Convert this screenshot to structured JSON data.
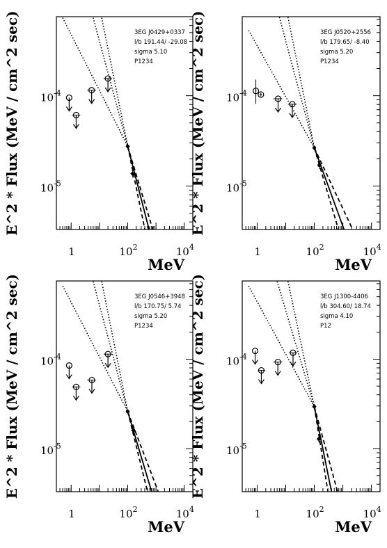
{
  "chart_data": [
    {
      "type": "scatter",
      "source": "3EG J0429+0337",
      "lb": "l/b 191.44/ -29.08",
      "sigma": "sigma  5.10",
      "period": "P1234",
      "xlabel": "MeV",
      "ylabel": "E^2 * Flux (MeV / cm^2 sec)",
      "xscale": "log",
      "yscale": "log",
      "xlim": [
        0.3,
        20000
      ],
      "ylim": [
        3.3e-06,
        0.00075
      ],
      "x_ticks": [
        {
          "base": "1",
          "exp": ""
        },
        {
          "base": "10",
          "exp": "2"
        },
        {
          "base": "10",
          "exp": "4"
        }
      ],
      "y_ticks": [
        {
          "base": "10",
          "exp": "-4"
        },
        {
          "base": "10",
          "exp": "-5"
        }
      ],
      "upper_limits": [
        {
          "x": 0.85,
          "y": 9.5e-05,
          "xerr": [
            0.85,
            0.85
          ]
        },
        {
          "x": 1.5,
          "y": 6.1e-05,
          "xerr": [
            1.08,
            2.1
          ]
        },
        {
          "x": 5.3,
          "y": 0.000115,
          "xerr": [
            3.7,
            7.5
          ]
        },
        {
          "x": 20,
          "y": 0.000155,
          "xerr": [
            14,
            28
          ]
        }
      ],
      "detections": [
        {
          "x": 100,
          "y": 2.75e-05,
          "xerr": [
            85,
            118
          ],
          "yerr": [
            2.55e-05,
            2.95e-05
          ]
        },
        {
          "x": 150,
          "y": 1.37e-05,
          "xerr": [
            125,
            180
          ],
          "yerr": [
            1.24e-05,
            1.51e-05
          ]
        }
      ],
      "model_lines": [
        {
          "style": "solid",
          "x": [
            100,
            650
          ],
          "y": [
            2.75e-05,
            2.8e-06
          ]
        },
        {
          "style": "dashed",
          "x": [
            100,
            450
          ],
          "y": [
            2.75e-05,
            2.8e-06
          ]
        },
        {
          "style": "dashed",
          "x": [
            100,
            900
          ],
          "y": [
            2.75e-05,
            2.8e-06
          ]
        },
        {
          "style": "dotted",
          "x": [
            0.5,
            100
          ],
          "y": [
            0.00073,
            2.75e-05
          ]
        },
        {
          "style": "dotted",
          "x": [
            6,
            100
          ],
          "y": [
            0.00073,
            2.75e-05
          ]
        },
        {
          "style": "dotted",
          "x": [
            12,
            100
          ],
          "y": [
            0.00073,
            2.75e-05
          ]
        }
      ]
    },
    {
      "type": "scatter",
      "source": "3EG J0520+2556",
      "lb": "l/b 179.65/ -8.40",
      "sigma": "sigma  5.20",
      "period": "P1234",
      "xlabel": "MeV",
      "ylabel": "E^2 * Flux (MeV / cm^2 sec)",
      "xscale": "log",
      "yscale": "log",
      "xlim": [
        0.3,
        20000
      ],
      "ylim": [
        3.3e-06,
        0.00075
      ],
      "x_ticks": [
        {
          "base": "1",
          "exp": ""
        },
        {
          "base": "10",
          "exp": "2"
        },
        {
          "base": "10",
          "exp": "4"
        }
      ],
      "y_ticks": [
        {
          "base": "10",
          "exp": "-4"
        },
        {
          "base": "10",
          "exp": "-5"
        }
      ],
      "upper_limits": [
        {
          "x": 5.4,
          "y": 9.25e-05,
          "xerr": [
            3.7,
            7.5
          ]
        },
        {
          "x": 17,
          "y": 8.05e-05,
          "xerr": [
            12,
            24
          ]
        }
      ],
      "detections": [
        {
          "x": 0.9,
          "y": 0.000113,
          "xerr": [
            0.85,
            0.95
          ],
          "yerr": [
            8.15e-05,
            0.000151
          ]
        },
        {
          "x": 1.35,
          "y": 0.000103,
          "xerr": [
            1.2,
            1.5
          ],
          "yerr": [
            9.8e-05,
            0.000108
          ]
        },
        {
          "x": 100,
          "y": 2.65e-05,
          "xerr": [
            90,
            115
          ],
          "yerr": [
            2.5e-05,
            2.8e-05
          ]
        },
        {
          "x": 150,
          "y": 1.7e-05,
          "xerr": [
            128,
            176
          ],
          "yerr": [
            1.55e-05,
            1.85e-05
          ]
        }
      ],
      "model_lines": [
        {
          "style": "solid",
          "x": [
            100,
            1100
          ],
          "y": [
            2.65e-05,
            3.3e-06
          ]
        },
        {
          "style": "dashed",
          "x": [
            100,
            700
          ],
          "y": [
            2.65e-05,
            3.3e-06
          ]
        },
        {
          "style": "dashed",
          "x": [
            100,
            2200
          ],
          "y": [
            2.65e-05,
            3.3e-06
          ]
        },
        {
          "style": "dotted",
          "x": [
            0.5,
            100
          ],
          "y": [
            0.00053,
            2.65e-05
          ]
        },
        {
          "style": "dotted",
          "x": [
            6,
            100
          ],
          "y": [
            0.00074,
            2.65e-05
          ]
        },
        {
          "style": "dotted",
          "x": [
            12,
            100
          ],
          "y": [
            0.00074,
            2.65e-05
          ]
        }
      ]
    },
    {
      "type": "scatter",
      "source": "3EG J0546+3948",
      "lb": "l/b 170.75/  5.74",
      "sigma": "sigma  5.20",
      "period": "P1234",
      "xlabel": "MeV",
      "ylabel": "E^2 * Flux (MeV / cm^2 sec)",
      "xscale": "log",
      "yscale": "log",
      "xlim": [
        0.3,
        20000
      ],
      "ylim": [
        3.3e-06,
        0.00075
      ],
      "x_ticks": [
        {
          "base": "1",
          "exp": ""
        },
        {
          "base": "10",
          "exp": "2"
        },
        {
          "base": "10",
          "exp": "4"
        }
      ],
      "y_ticks": [
        {
          "base": "10",
          "exp": "-4"
        },
        {
          "base": "10",
          "exp": "-5"
        }
      ],
      "upper_limits": [
        {
          "x": 0.85,
          "y": 8.5e-05,
          "xerr": [
            0.85,
            0.85
          ]
        },
        {
          "x": 1.5,
          "y": 4.9e-05,
          "xerr": [
            1.08,
            2.1
          ]
        },
        {
          "x": 5.4,
          "y": 5.85e-05,
          "xerr": [
            3.7,
            7.5
          ]
        },
        {
          "x": 20,
          "y": 0.000114,
          "xerr": [
            14,
            28
          ]
        }
      ],
      "detections": [
        {
          "x": 100,
          "y": 2.6e-05,
          "xerr": [
            85,
            118
          ],
          "yerr": [
            2.45e-05,
            2.75e-05
          ]
        },
        {
          "x": 160,
          "y": 1.6e-05,
          "xerr": [
            130,
            190
          ],
          "yerr": [
            1.48e-05,
            1.72e-05
          ]
        }
      ],
      "model_lines": [
        {
          "style": "solid",
          "x": [
            100,
            700
          ],
          "y": [
            2.6e-05,
            3.3e-06
          ]
        },
        {
          "style": "dashed",
          "x": [
            100,
            500
          ],
          "y": [
            2.6e-05,
            3.3e-06
          ]
        },
        {
          "style": "dashed",
          "x": [
            100,
            1200
          ],
          "y": [
            2.6e-05,
            3.3e-06
          ]
        },
        {
          "style": "dotted",
          "x": [
            0.5,
            100
          ],
          "y": [
            0.00066,
            2.6e-05
          ]
        },
        {
          "style": "dotted",
          "x": [
            6,
            100
          ],
          "y": [
            0.00074,
            2.6e-05
          ]
        },
        {
          "style": "dotted",
          "x": [
            12,
            100
          ],
          "y": [
            0.00074,
            2.6e-05
          ]
        }
      ]
    },
    {
      "type": "scatter",
      "source": "3EG J1300-4406",
      "lb": "l/b 304.60/ 18.74",
      "sigma": "sigma  4.10",
      "period": "P12",
      "xlabel": "MeV",
      "ylabel": "E^2 * Flux (MeV / cm^2 sec)",
      "xscale": "log",
      "yscale": "log",
      "xlim": [
        0.3,
        20000
      ],
      "ylim": [
        3.3e-06,
        0.00075
      ],
      "x_ticks": [
        {
          "base": "1",
          "exp": ""
        },
        {
          "base": "10",
          "exp": "2"
        },
        {
          "base": "10",
          "exp": "4"
        }
      ],
      "y_ticks": [
        {
          "base": "10",
          "exp": "-4"
        },
        {
          "base": "10",
          "exp": "-5"
        }
      ],
      "upper_limits": [
        {
          "x": 0.85,
          "y": 0.000124,
          "xerr": [
            0.85,
            0.85
          ]
        },
        {
          "x": 1.4,
          "y": 7.5e-05,
          "xerr": [
            1.08,
            1.9
          ]
        },
        {
          "x": 5.3,
          "y": 9.3e-05,
          "xerr": [
            3.7,
            7.5
          ]
        },
        {
          "x": 18,
          "y": 0.000118,
          "xerr": [
            13,
            25
          ]
        }
      ],
      "detections": [
        {
          "x": 100,
          "y": 2.95e-05,
          "xerr": [
            85,
            118
          ],
          "yerr": [
            2.75e-05,
            3.15e-05
          ]
        },
        {
          "x": 145,
          "y": 1.28e-05,
          "xerr": [
            122,
            172
          ],
          "yerr": [
            1.17e-05,
            1.39e-05
          ]
        }
      ],
      "model_lines": [
        {
          "style": "solid",
          "x": [
            100,
            400
          ],
          "y": [
            2.95e-05,
            3.3e-06
          ]
        },
        {
          "style": "dashed",
          "x": [
            100,
            300
          ],
          "y": [
            2.95e-05,
            3.3e-06
          ]
        },
        {
          "style": "dashed",
          "x": [
            100,
            650
          ],
          "y": [
            2.95e-05,
            3.3e-06
          ]
        },
        {
          "style": "dotted",
          "x": [
            0.5,
            100
          ],
          "y": [
            0.00066,
            2.95e-05
          ]
        },
        {
          "style": "dotted",
          "x": [
            5,
            100
          ],
          "y": [
            0.00074,
            2.95e-05
          ]
        },
        {
          "style": "dotted",
          "x": [
            12,
            100
          ],
          "y": [
            0.00074,
            2.95e-05
          ]
        }
      ]
    }
  ]
}
